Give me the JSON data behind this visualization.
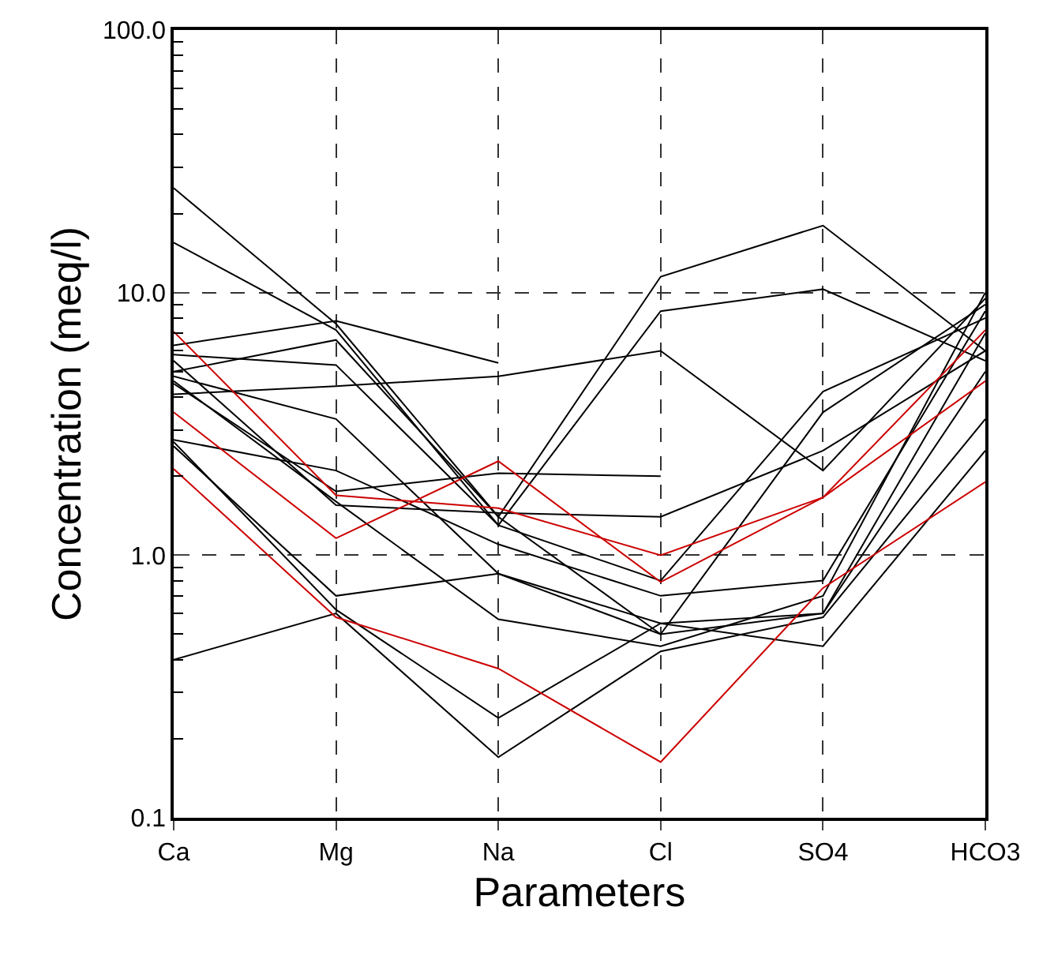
{
  "chart_data": {
    "type": "line",
    "xlabel": "Parameters",
    "ylabel": "Concentration (meq/l)",
    "categories": [
      "Ca",
      "Mg",
      "Na",
      "Cl",
      "SO4",
      "HCO3"
    ],
    "log": true,
    "ylim": [
      0.1,
      100
    ],
    "yticks": [
      {
        "value": 0.1,
        "label": "0.1"
      },
      {
        "value": 1,
        "label": "1.0"
      },
      {
        "value": 10,
        "label": "10.0"
      },
      {
        "value": 100,
        "label": "100.0"
      }
    ],
    "grid": true,
    "marker": "none",
    "line_style": "solid",
    "series": [
      {
        "color": "#000000",
        "values": [
          25,
          7.6,
          1.4,
          11.5,
          18,
          6
        ]
      },
      {
        "color": "#000000",
        "values": [
          15.5,
          7.2,
          1.3,
          8.5,
          10.3,
          5.5
        ]
      },
      {
        "color": "#000000",
        "values": [
          6.3,
          7.8,
          5.4,
          null,
          null,
          null
        ]
      },
      {
        "color": "#000000",
        "values": [
          4.1,
          4.4,
          4.8,
          6.0,
          2.1,
          9.5
        ]
      },
      {
        "color": "#000000",
        "values": [
          5.8,
          5.3,
          1.3,
          0.8,
          4.2,
          8
        ]
      },
      {
        "color": "#000000",
        "values": [
          5.0,
          6.6,
          1.4,
          0.5,
          3.5,
          9
        ]
      },
      {
        "color": "#000000",
        "values": [
          4.5,
          1.75,
          2.05,
          2.0,
          null,
          null
        ]
      },
      {
        "color": "#000000",
        "values": [
          5.5,
          1.55,
          1.45,
          1.4,
          2.5,
          6
        ]
      },
      {
        "color": "#000000",
        "values": [
          2.75,
          2.1,
          1.1,
          0.7,
          0.8,
          8.5
        ]
      },
      {
        "color": "#000000",
        "values": [
          4.8,
          3.3,
          0.85,
          0.55,
          0.6,
          7
        ]
      },
      {
        "color": "#000000",
        "values": [
          2.6,
          0.7,
          0.85,
          0.5,
          0.6,
          5
        ]
      },
      {
        "color": "#000000",
        "values": [
          2.7,
          0.62,
          0.24,
          0.55,
          0.45,
          2.5
        ]
      },
      {
        "color": "#000000",
        "values": [
          0.4,
          0.6,
          0.17,
          0.43,
          0.58,
          3.3
        ]
      },
      {
        "color": "#000000",
        "values": [
          4.6,
          1.6,
          0.57,
          0.45,
          0.7,
          10
        ]
      },
      {
        "color": "#cc0000",
        "values": [
          7.1,
          1.69,
          1.51,
          1.0,
          1.66,
          4.6
        ]
      },
      {
        "color": "#cc0000",
        "values": [
          3.5,
          1.16,
          2.28,
          0.79,
          1.66,
          7.2
        ]
      },
      {
        "color": "#cc0000",
        "values": [
          2.13,
          0.58,
          0.37,
          0.163,
          0.75,
          1.9
        ]
      }
    ]
  }
}
